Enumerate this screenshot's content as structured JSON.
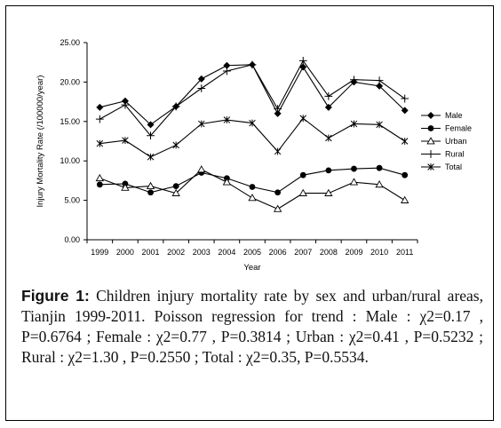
{
  "chart_data": {
    "type": "line",
    "categories": [
      "1999",
      "2000",
      "2001",
      "2002",
      "2003",
      "2004",
      "2005",
      "2006",
      "2007",
      "2008",
      "2009",
      "2010",
      "2011"
    ],
    "series": [
      {
        "name": "Male",
        "marker": "diamond",
        "values": [
          16.8,
          17.6,
          14.6,
          16.9,
          20.4,
          22.1,
          22.2,
          16.0,
          21.9,
          16.8,
          20.0,
          19.5,
          16.4
        ]
      },
      {
        "name": "Female",
        "marker": "circle",
        "values": [
          7.0,
          7.1,
          6.0,
          6.8,
          8.5,
          7.8,
          6.7,
          6.0,
          8.2,
          8.8,
          9.0,
          9.1,
          8.2
        ]
      },
      {
        "name": "Urban",
        "marker": "triangle",
        "values": [
          7.8,
          6.6,
          6.8,
          5.9,
          8.9,
          7.3,
          5.3,
          3.9,
          5.9,
          5.9,
          7.3,
          7.0,
          5.0
        ]
      },
      {
        "name": "Rural",
        "marker": "plus",
        "values": [
          15.3,
          17.1,
          13.2,
          16.9,
          19.2,
          21.4,
          22.2,
          16.6,
          22.7,
          18.2,
          20.3,
          20.2,
          17.9
        ]
      },
      {
        "name": "Total",
        "marker": "asterisk",
        "values": [
          12.2,
          12.6,
          10.5,
          12.0,
          14.7,
          15.2,
          14.8,
          11.2,
          15.4,
          12.9,
          14.7,
          14.6,
          12.5
        ]
      }
    ],
    "ylim": [
      0,
      25
    ],
    "yticks": [
      "0.00",
      "5.00",
      "10.00",
      "15.00",
      "20.00",
      "25.00"
    ],
    "xlabel": "Year",
    "ylabel": "Injury Mortality Rate (/100000/year)",
    "legend_position": "right",
    "grid": false
  },
  "caption": {
    "label": "Figure 1:",
    "text": " Children injury mortality rate by sex and urban/rural areas, Tianjin 1999-2011. Poisson regression for trend : Male : χ2=0.17 , P=0.6764 ; Female : χ2=0.77 , P=0.3814 ; Urban : χ2=0.41 , P=0.5232 ; Rural : χ2=1.30 , P=0.2550 ; Total : χ2=0.35, P=0.5534."
  }
}
